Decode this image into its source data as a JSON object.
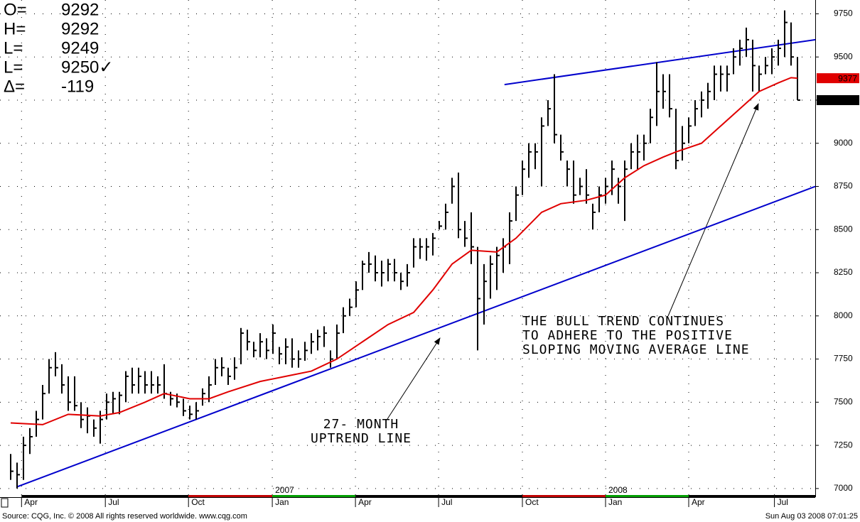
{
  "chart_data": {
    "type": "ohlc",
    "readout": [
      {
        "label": "O=",
        "value": 9292
      },
      {
        "label": "H=",
        "value": 9292
      },
      {
        "label": "L=",
        "value": 9249
      },
      {
        "label": "L=",
        "value": 9250,
        "value_label": "9250✓"
      },
      {
        "label": "Δ=",
        "value": -119
      }
    ],
    "color": "#000000",
    "high": [
      7200,
      7150,
      7300,
      7350,
      7450,
      7600,
      7750,
      7790,
      7720,
      7650,
      7650,
      7500,
      7470,
      7400,
      7450,
      7550,
      7560,
      7560,
      7680,
      7700,
      7700,
      7680,
      7680,
      7650,
      7720,
      7560,
      7550,
      7520,
      7480,
      7500,
      7580,
      7650,
      7750,
      7760,
      7700,
      7760,
      7930,
      7920,
      7850,
      7900,
      7870,
      7950,
      7820,
      7870,
      7870,
      7800,
      7850,
      7900,
      7920,
      7940,
      7800,
      7950,
      8050,
      8100,
      8200,
      8320,
      8370,
      8350,
      8320,
      8330,
      8330,
      8250,
      8300,
      8450,
      8450,
      8450,
      8480,
      8550,
      8650,
      8800,
      8830,
      8550,
      8600,
      8400,
      8300,
      8350,
      8400,
      8450,
      8600,
      8750,
      8900,
      9000,
      9000,
      9150,
      9250,
      9400,
      9050,
      8900,
      8900,
      8800,
      8850,
      8650,
      8750,
      8800,
      8900,
      8800,
      8900,
      9000,
      9050,
      9050,
      9200,
      9470,
      9400,
      9400,
      9200,
      9100,
      9150,
      9250,
      9300,
      9350,
      9450,
      9450,
      9450,
      9550,
      9600,
      9670,
      9600,
      9450,
      9500,
      9550,
      9600,
      9770,
      9700,
      9500
    ],
    "low": [
      7050,
      7000,
      7050,
      7200,
      7300,
      7400,
      7550,
      7650,
      7550,
      7450,
      7450,
      7350,
      7320,
      7300,
      7260,
      7400,
      7430,
      7430,
      7500,
      7550,
      7550,
      7550,
      7550,
      7550,
      7520,
      7480,
      7470,
      7420,
      7400,
      7400,
      7480,
      7500,
      7600,
      7650,
      7600,
      7630,
      7720,
      7800,
      7760,
      7760,
      7750,
      7780,
      7720,
      7720,
      7700,
      7700,
      7740,
      7780,
      7800,
      7820,
      7700,
      7750,
      7900,
      8000,
      8050,
      8150,
      8250,
      8200,
      8170,
      8200,
      8200,
      8150,
      8170,
      8280,
      8330,
      8320,
      8350,
      8500,
      8500,
      8650,
      8450,
      8400,
      8300,
      7800,
      7950,
      8100,
      8150,
      8250,
      8300,
      8550,
      8700,
      8800,
      8850,
      8750,
      9100,
      9000,
      8900,
      8750,
      8650,
      8700,
      8650,
      8500,
      8600,
      8650,
      8700,
      8650,
      8550,
      8850,
      8850,
      8900,
      9000,
      9100,
      9200,
      9150,
      8850,
      8900,
      9000,
      9100,
      9150,
      9200,
      9250,
      9300,
      9300,
      9400,
      9450,
      9500,
      9300,
      9300,
      9400,
      9400,
      9450,
      9500,
      9450,
      9250
    ],
    "close": [
      7100,
      7080,
      7250,
      7300,
      7400,
      7550,
      7700,
      7700,
      7600,
      7500,
      7480,
      7400,
      7420,
      7350,
      7400,
      7500,
      7520,
      7540,
      7650,
      7600,
      7650,
      7600,
      7600,
      7600,
      7550,
      7520,
      7500,
      7450,
      7430,
      7450,
      7550,
      7600,
      7700,
      7700,
      7650,
      7700,
      7900,
      7850,
      7800,
      7850,
      7800,
      7900,
      7780,
      7820,
      7750,
      7750,
      7800,
      7850,
      7880,
      7900,
      7750,
      7900,
      8000,
      8050,
      8150,
      8300,
      8300,
      8250,
      8250,
      8300,
      8250,
      8200,
      8250,
      8400,
      8400,
      8400,
      8450,
      8520,
      8600,
      8750,
      8500,
      8450,
      8400,
      8100,
      8200,
      8300,
      8350,
      8400,
      8550,
      8700,
      8850,
      8950,
      8950,
      9100,
      9200,
      9050,
      8950,
      8850,
      8700,
      8750,
      8700,
      8600,
      8700,
      8750,
      8850,
      8750,
      8850,
      8950,
      8950,
      9000,
      9150,
      9300,
      9300,
      9200,
      8900,
      9000,
      9100,
      9200,
      9250,
      9300,
      9400,
      9400,
      9400,
      9500,
      9550,
      9600,
      9450,
      9400,
      9450,
      9500,
      9550,
      9700,
      9500,
      9250
    ],
    "moving_average": {
      "color": "#e00000",
      "x": [
        0,
        5,
        9,
        14,
        17,
        21,
        24,
        28,
        31,
        34,
        39,
        43,
        47,
        51,
        55,
        59,
        63,
        66,
        69,
        72,
        76,
        79,
        83,
        86,
        90,
        93,
        96,
        99,
        102,
        104,
        108,
        111,
        114,
        117,
        120,
        122,
        123
      ],
      "values": [
        7380,
        7370,
        7430,
        7420,
        7440,
        7500,
        7550,
        7520,
        7520,
        7560,
        7620,
        7650,
        7680,
        7750,
        7850,
        7950,
        8020,
        8150,
        8300,
        8380,
        8370,
        8450,
        8600,
        8650,
        8670,
        8700,
        8800,
        8870,
        8920,
        8950,
        9000,
        9100,
        9200,
        9300,
        9350,
        9380,
        9377
      ]
    },
    "trendlines": [
      {
        "color": "#0000cc",
        "x": [
          1,
          125.8
        ],
        "values": [
          7010,
          8750
        ]
      },
      {
        "color": "#0000cc",
        "x": [
          77.2,
          125.8
        ],
        "values": [
          9340,
          9600
        ]
      }
    ],
    "annotations": [
      {
        "lines": [
          "THE BULL TREND CONTINUES",
          "TO ADHERE TO THE POSITIVE",
          "SLOPING MOVING AVERAGE LINE"
        ]
      },
      {
        "lines": [
          "27- MONTH",
          "UPTREND LINE"
        ]
      }
    ],
    "last_tags": [
      {
        "value": 9377,
        "color": "#e00000"
      },
      {
        "value": 9250,
        "color": "#000000"
      }
    ],
    "ylim": [
      6950,
      9830
    ],
    "yticks": [
      7000,
      7250,
      7500,
      7750,
      8000,
      8250,
      8500,
      8750,
      9000,
      9250,
      9500,
      9750
    ],
    "xlim": [
      -1.667,
      125.778
    ],
    "xticks": [
      {
        "value": 1.7,
        "label": "Apr"
      },
      {
        "value": 14.8,
        "label": "Jul"
      },
      {
        "value": 27.8,
        "label": "Oct"
      },
      {
        "value": 40.9,
        "label": "Jan"
      },
      {
        "value": 53.9,
        "label": "Apr"
      },
      {
        "value": 66.9,
        "label": "Jul"
      },
      {
        "value": 80,
        "label": "Oct"
      },
      {
        "value": 93,
        "label": "Jan"
      },
      {
        "value": 106,
        "label": "Apr"
      },
      {
        "value": 119.4,
        "label": "Jul"
      }
    ],
    "years": [
      {
        "value": 40.9,
        "label": "2007"
      },
      {
        "value": 93,
        "label": "2008"
      }
    ],
    "grid": true,
    "source": "Source: CQG, Inc. © 2008 All rights reserved worldwide. www.cqg.com",
    "timestamp": "Sun Aug 03 2008 07:01:25"
  }
}
